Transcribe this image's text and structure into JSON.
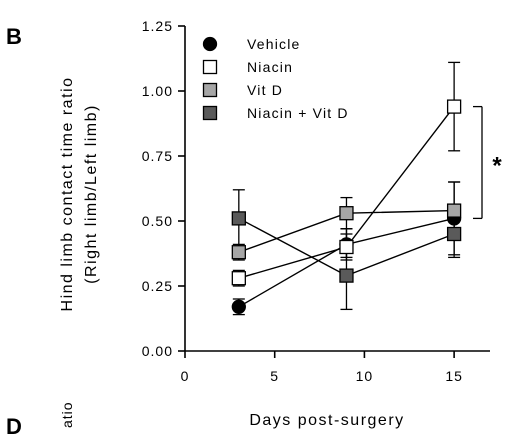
{
  "panel_label": "B",
  "next_panel_label": "D",
  "next_panel_ylabel_fragment": "atio",
  "chart_data": {
    "type": "line",
    "ylabel_line1": "Hind limb contact time ratio",
    "ylabel_line2": "(Right limb/Left limb)",
    "xlabel": "Days post-surgery",
    "xlim": [
      0,
      17
    ],
    "ylim": [
      0,
      1.25
    ],
    "xticks": [
      0,
      5,
      10,
      15
    ],
    "yticks": [
      0.0,
      0.25,
      0.5,
      0.75,
      1.0,
      1.25
    ],
    "ytick_labels": [
      "0.00",
      "0.25",
      "0.50",
      "0.75",
      "1.00",
      "1.25"
    ],
    "xtick_labels": [
      "0",
      "5",
      "10",
      "15"
    ],
    "series": [
      {
        "name": "Vehicle",
        "marker": "circle",
        "fill": "#000000",
        "x": [
          3,
          9,
          15
        ],
        "y": [
          0.17,
          0.41,
          0.51
        ],
        "err_up": [
          0.03,
          0.06,
          0.14
        ],
        "err_down": [
          0.03,
          0.05,
          0.14
        ]
      },
      {
        "name": "Niacin",
        "marker": "square",
        "fill": "#ffffff",
        "x": [
          3,
          9,
          15
        ],
        "y": [
          0.28,
          0.4,
          0.94
        ],
        "err_up": [
          0.03,
          0.05,
          0.17
        ],
        "err_down": [
          0.03,
          0.05,
          0.17
        ]
      },
      {
        "name": "Vit D",
        "marker": "square",
        "fill": "#a6a6a6",
        "x": [
          3,
          9,
          15
        ],
        "y": [
          0.38,
          0.53,
          0.54
        ],
        "err_up": [
          0.03,
          0.06,
          0.11
        ],
        "err_down": [
          0.03,
          0.06,
          0.11
        ]
      },
      {
        "name": "Niacin + Vit D",
        "marker": "square",
        "fill": "#5a5a5a",
        "x": [
          3,
          9,
          15
        ],
        "y": [
          0.51,
          0.29,
          0.45
        ],
        "err_up": [
          0.11,
          0.18,
          0.09
        ],
        "err_down": [
          0.11,
          0.13,
          0.09
        ]
      }
    ],
    "significance": {
      "label": "*",
      "from_y": 0.94,
      "to_y": 0.51
    },
    "legend_position": "top-left"
  }
}
